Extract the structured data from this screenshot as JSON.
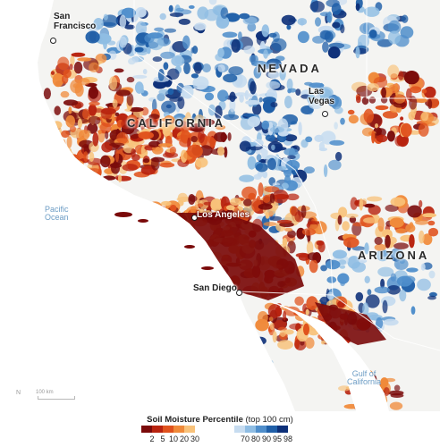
{
  "map": {
    "colors": {
      "dry_2": "#7a0a0a",
      "dry_5": "#b8230f",
      "dry_10": "#e0521d",
      "dry_20": "#f08a3a",
      "dry_30": "#f8c27a",
      "neutral": "#f4f4f2",
      "wet_70": "#c7dcf0",
      "wet_80": "#8fbde3",
      "wet_90": "#4f8ecb",
      "wet_95": "#1f5fa8",
      "wet_98": "#0c2f78",
      "ocean": "#ffffff",
      "border": "#ffffff"
    },
    "labels": {
      "san_francisco": "San\nFrancisco",
      "nevada": "NEVADA",
      "las_vegas": "Las\nVegas",
      "california": "CALIFORNIA",
      "pacific_ocean": "Pacific\nOcean",
      "los_angeles": "Los Angeles",
      "arizona": "ARIZONA",
      "san_diego": "San Diego",
      "gulf_of_california": "Gulf of\nCalifornia"
    },
    "scale_bar": {
      "label": "100 km",
      "north": "N"
    }
  },
  "legend": {
    "title": "Soil Moisture Percentile",
    "subtitle": "(top 100 cm)",
    "dry_ticks": [
      "2",
      "5",
      "10",
      "20",
      "30"
    ],
    "wet_ticks": [
      "70",
      "80",
      "90",
      "95",
      "98"
    ]
  }
}
